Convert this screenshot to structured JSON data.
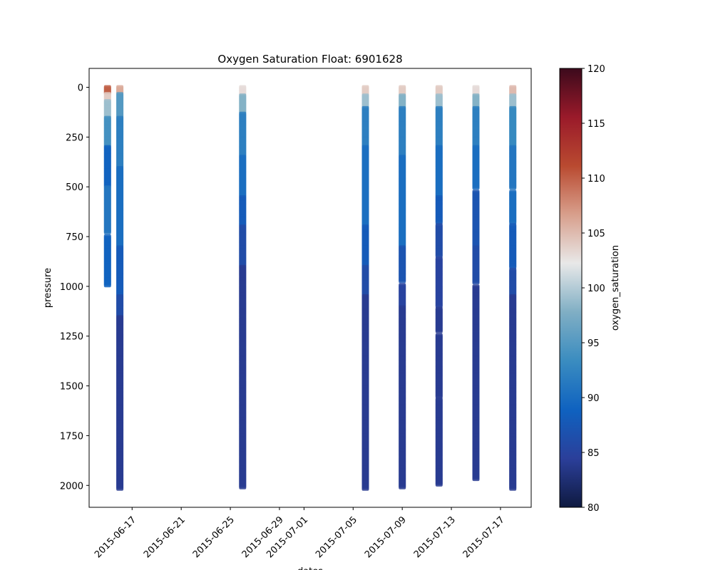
{
  "chart_data": {
    "type": "scatter",
    "title": "Oxygen Saturation Float: 6901628",
    "xlabel": "dates",
    "ylabel": "pressure",
    "x_ticks": [
      "2015-06-17",
      "2015-06-21",
      "2015-06-25",
      "2015-06-29",
      "2015-07-01",
      "2015-07-05",
      "2015-07-09",
      "2015-07-13",
      "2015-07-17"
    ],
    "y_ticks": [
      0,
      250,
      500,
      750,
      1000,
      1250,
      1500,
      1750,
      2000
    ],
    "xlim": [
      "2015-06-13T12:00",
      "2015-07-19T12:00"
    ],
    "ylim": [
      2110,
      -95
    ],
    "y_inverted": true,
    "grid": false,
    "colorbar": {
      "label": "oxygen_saturation",
      "min": 80,
      "max": 120,
      "ticks": [
        80,
        85,
        90,
        95,
        100,
        105,
        110,
        115,
        120
      ],
      "colormap": [
        "#0f1a40",
        "#2b3f9a",
        "#0f62c0",
        "#3a8cc0",
        "#7faec4",
        "#e8e8e8",
        "#d89f8c",
        "#b94a30",
        "#9a1a2a",
        "#3c0a1c"
      ]
    },
    "profiles": [
      {
        "date": "2015-06-15",
        "max_pressure": 1000,
        "gaps": [
          740
        ],
        "segments": [
          [
            0,
            30,
            110
          ],
          [
            30,
            70,
            104
          ],
          [
            70,
            150,
            99
          ],
          [
            150,
            300,
            94
          ],
          [
            300,
            500,
            89
          ],
          [
            500,
            740,
            91
          ],
          [
            740,
            1000,
            89
          ]
        ]
      },
      {
        "date": "2015-06-16",
        "max_pressure": 2020,
        "gaps": [],
        "segments": [
          [
            0,
            30,
            106
          ],
          [
            30,
            150,
            95
          ],
          [
            150,
            400,
            92
          ],
          [
            400,
            800,
            90
          ],
          [
            800,
            1050,
            88
          ],
          [
            1050,
            1150,
            86
          ],
          [
            1150,
            2020,
            84
          ]
        ]
      },
      {
        "date": "2015-06-26",
        "max_pressure": 2015,
        "gaps": [],
        "segments": [
          [
            0,
            40,
            103
          ],
          [
            40,
            130,
            98
          ],
          [
            130,
            350,
            92
          ],
          [
            350,
            550,
            90
          ],
          [
            550,
            700,
            88
          ],
          [
            700,
            900,
            86
          ],
          [
            900,
            2015,
            84
          ]
        ]
      },
      {
        "date": "2015-07-06",
        "max_pressure": 2020,
        "gaps": [],
        "segments": [
          [
            0,
            40,
            104
          ],
          [
            40,
            100,
            99
          ],
          [
            100,
            300,
            92
          ],
          [
            300,
            700,
            90
          ],
          [
            700,
            900,
            88
          ],
          [
            900,
            1050,
            86
          ],
          [
            1050,
            2020,
            84
          ]
        ]
      },
      {
        "date": "2015-07-09",
        "max_pressure": 2015,
        "gaps": [
          985
        ],
        "segments": [
          [
            0,
            40,
            104
          ],
          [
            40,
            100,
            98
          ],
          [
            100,
            350,
            92
          ],
          [
            350,
            800,
            90
          ],
          [
            800,
            985,
            87
          ],
          [
            985,
            1100,
            85
          ],
          [
            1100,
            2015,
            84
          ]
        ]
      },
      {
        "date": "2015-07-12",
        "max_pressure": 2000,
        "gaps": [
          685,
          855,
          1105,
          1235,
          1560
        ],
        "segments": [
          [
            0,
            40,
            104
          ],
          [
            40,
            100,
            99
          ],
          [
            100,
            300,
            92
          ],
          [
            300,
            550,
            90
          ],
          [
            550,
            685,
            88
          ],
          [
            685,
            855,
            86
          ],
          [
            855,
            1105,
            85
          ],
          [
            1105,
            2000,
            84
          ]
        ]
      },
      {
        "date": "2015-07-15",
        "max_pressure": 1970,
        "gaps": [
          515,
          990
        ],
        "segments": [
          [
            0,
            40,
            103
          ],
          [
            40,
            100,
            98
          ],
          [
            100,
            300,
            92
          ],
          [
            300,
            515,
            90
          ],
          [
            515,
            800,
            87
          ],
          [
            800,
            990,
            86
          ],
          [
            990,
            1970,
            84
          ]
        ]
      },
      {
        "date": "2015-07-18",
        "max_pressure": 2020,
        "gaps": [
          515,
          685,
          910
        ],
        "segments": [
          [
            0,
            40,
            105
          ],
          [
            40,
            100,
            99
          ],
          [
            100,
            300,
            93
          ],
          [
            300,
            515,
            91
          ],
          [
            515,
            685,
            90
          ],
          [
            685,
            910,
            88
          ],
          [
            910,
            1050,
            86
          ],
          [
            1050,
            2020,
            84
          ]
        ]
      }
    ]
  }
}
